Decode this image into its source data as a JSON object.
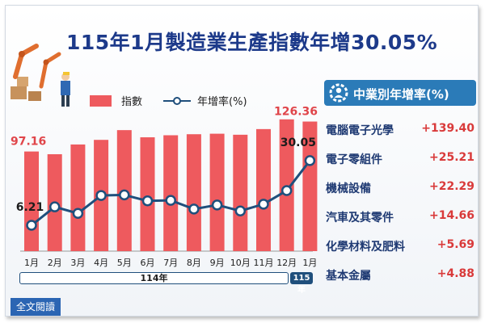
{
  "title": "115年1月製造業生產指數年增30.05%",
  "legend": {
    "bar_label": "指數",
    "line_label": "年增率(%)"
  },
  "chart_data": {
    "type": "bar",
    "categories": [
      "1月",
      "2月",
      "3月",
      "4月",
      "5月",
      "6月",
      "7月",
      "8月",
      "9月",
      "10月",
      "11月",
      "12月",
      "1月"
    ],
    "series": [
      {
        "name": "指數",
        "type": "bar",
        "values": [
          97.16,
          94.5,
          104,
          108.5,
          118,
          111,
          113,
          114,
          114.5,
          113.5,
          119,
          128.5,
          126.36
        ]
      },
      {
        "name": "年增率(%)",
        "type": "line",
        "values": [
          6.21,
          13.0,
          10.6,
          17.2,
          17.4,
          15.2,
          15.4,
          12.2,
          13.7,
          11.5,
          14.0,
          19.0,
          30.05
        ]
      }
    ],
    "data_labels": [
      {
        "series": "指數",
        "index": 0,
        "text": "97.16"
      },
      {
        "series": "指數",
        "index": 12,
        "text": "126.36"
      },
      {
        "series": "年增率(%)",
        "index": 0,
        "text": "6.21"
      },
      {
        "series": "年增率(%)",
        "index": 12,
        "text": "30.05"
      }
    ],
    "year_groups": [
      {
        "label": "114年",
        "span": 12
      },
      {
        "label": "115年",
        "span": 1
      }
    ],
    "colors": {
      "bar": "#ee5a5e",
      "line": "#1f4f7c",
      "label": "#e0454a"
    }
  },
  "panel": {
    "header": "中業別年增率(%)",
    "rows": [
      {
        "name": "電腦電子光學",
        "value": "+139.40"
      },
      {
        "name": "電子零組件",
        "value": "+25.21"
      },
      {
        "name": "機械設備",
        "value": "+22.29"
      },
      {
        "name": "汽車及其零件",
        "value": "+14.66"
      },
      {
        "name": "化學材料及肥料",
        "value": "+5.69"
      },
      {
        "name": "基本金屬",
        "value": "+4.88"
      }
    ]
  },
  "footer": {
    "read_more": "全文閱讀"
  },
  "icons": {
    "illustration": "robot-arm-worker-illustration",
    "panel": "gear-person-icon"
  }
}
